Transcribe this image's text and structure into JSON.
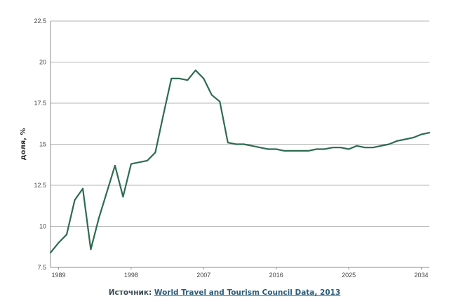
{
  "chart_data": {
    "type": "line",
    "title": "",
    "xlabel": "",
    "ylabel": "доля, %",
    "ylim": [
      7.5,
      22.5
    ],
    "xlim": [
      1988,
      2035
    ],
    "yticks": [
      "7.5",
      "10",
      "12.5",
      "15",
      "17.5",
      "20",
      "22.5"
    ],
    "xticks": [
      "1989",
      "1998",
      "2007",
      "2016",
      "2025",
      "2034"
    ],
    "grid": "horizontal",
    "line_color": "#2e6b50",
    "series": [
      {
        "x": [
          1988,
          1989,
          1990,
          1991,
          1992,
          1993,
          1994,
          1995,
          1996,
          1997,
          1998,
          1999,
          2000,
          2001,
          2002,
          2003,
          2004,
          2005,
          2006,
          2007,
          2008,
          2009,
          2010,
          2011,
          2012,
          2013,
          2014,
          2015,
          2016,
          2017,
          2018,
          2019,
          2020,
          2021,
          2022,
          2023,
          2024,
          2025,
          2026,
          2027,
          2028,
          2029,
          2030,
          2031,
          2032,
          2033,
          2034,
          2035
        ],
        "y": [
          8.4,
          9.0,
          9.5,
          11.6,
          12.3,
          8.6,
          10.5,
          12.1,
          13.7,
          11.8,
          13.8,
          13.9,
          14.0,
          14.5,
          16.8,
          19.0,
          19.0,
          18.9,
          19.5,
          19.0,
          18.0,
          17.6,
          15.1,
          15.0,
          15.0,
          14.9,
          14.8,
          14.7,
          14.7,
          14.6,
          14.6,
          14.6,
          14.6,
          14.7,
          14.7,
          14.8,
          14.8,
          14.7,
          14.9,
          14.8,
          14.8,
          14.9,
          15.0,
          15.2,
          15.3,
          15.4,
          15.6,
          15.7
        ]
      }
    ]
  },
  "source": {
    "prefix": "Источник: ",
    "link_text": "World Travel and Tourism Council Data, 2013"
  }
}
